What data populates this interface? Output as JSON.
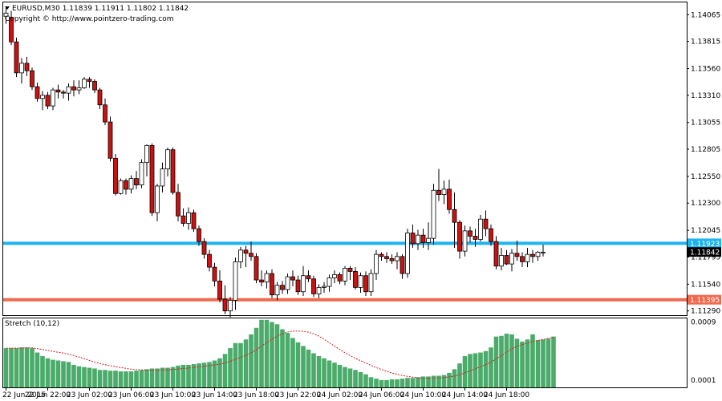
{
  "header": {
    "symbol_line": "EURUSD,M30  1.11839 1.11911 1.11802 1.11842",
    "copyright": "Copyright © http://www.pointzero-trading.com"
  },
  "indicator": {
    "title": "Stretch (10,12)"
  },
  "colors": {
    "bull_body": "#ffffff",
    "bear_body": "#cc1111",
    "wick": "#000000",
    "resistance_line": "#1eb4ee",
    "support_line": "#ef6a4e",
    "histogram": "#4bab6a",
    "signal": "#d62020",
    "current_tag": "#000000"
  },
  "chart_data": [
    {
      "type": "candlestick",
      "symbol": "EURUSD",
      "timeframe": "M30",
      "ohlc": {
        "open": "1.11839",
        "high": "1.11911",
        "low": "1.11802",
        "close": "1.11842"
      },
      "ylim": [
        1.1125,
        1.1418
      ],
      "y_ticks": [
        "1.14065",
        "1.13815",
        "1.13560",
        "1.13310",
        "1.13055",
        "1.12805",
        "1.12550",
        "1.12300",
        "1.12045",
        "1.11795",
        "1.11540",
        "1.11290"
      ],
      "x_ticks": [
        "22 Jun 2015",
        "22 Jun 22:00",
        "23 Jun 02:00",
        "23 Jun 06:00",
        "23 Jun 10:00",
        "23 Jun 14:00",
        "23 Jun 18:00",
        "23 Jun 22:00",
        "24 Jun 02:00",
        "24 Jun 06:00",
        "24 Jun 10:00",
        "24 Jun 14:00",
        "24 Jun 18:00"
      ],
      "levels": [
        {
          "value": 1.11923,
          "label": "1.11923",
          "color": "#1eb4ee"
        },
        {
          "value": 1.11395,
          "label": "1.11395",
          "color": "#ef6a4e"
        }
      ],
      "current_price": "1.11842",
      "candles": [
        [
          1.1405,
          1.1413,
          1.1398,
          1.1408
        ],
        [
          1.1404,
          1.141,
          1.1378,
          1.1381
        ],
        [
          1.1381,
          1.1385,
          1.1348,
          1.1352
        ],
        [
          1.1352,
          1.1366,
          1.1342,
          1.1361
        ],
        [
          1.1361,
          1.1367,
          1.1349,
          1.1354
        ],
        [
          1.1354,
          1.1357,
          1.1336,
          1.1339
        ],
        [
          1.1339,
          1.1343,
          1.1325,
          1.1328
        ],
        [
          1.1328,
          1.1335,
          1.1317,
          1.1331
        ],
        [
          1.1331,
          1.1334,
          1.1318,
          1.1321
        ],
        [
          1.1321,
          1.1338,
          1.1317,
          1.1336
        ],
        [
          1.1336,
          1.1341,
          1.1328,
          1.1334
        ],
        [
          1.1334,
          1.1336,
          1.1328,
          1.1333
        ],
        [
          1.1333,
          1.1342,
          1.1326,
          1.1339
        ],
        [
          1.1339,
          1.1345,
          1.133,
          1.1336
        ],
        [
          1.1336,
          1.1345,
          1.1332,
          1.1338
        ],
        [
          1.1338,
          1.1348,
          1.1337,
          1.1346
        ],
        [
          1.1346,
          1.1348,
          1.1338,
          1.1344
        ],
        [
          1.1344,
          1.1346,
          1.1333,
          1.1336
        ],
        [
          1.1336,
          1.1338,
          1.1318,
          1.1322
        ],
        [
          1.1322,
          1.1328,
          1.1303,
          1.1306
        ],
        [
          1.1306,
          1.1311,
          1.1269,
          1.1272
        ],
        [
          1.1272,
          1.1276,
          1.1237,
          1.1239
        ],
        [
          1.1239,
          1.1253,
          1.1238,
          1.1251
        ],
        [
          1.1251,
          1.1253,
          1.1238,
          1.1243
        ],
        [
          1.1243,
          1.1256,
          1.1239,
          1.1253
        ],
        [
          1.1253,
          1.126,
          1.1243,
          1.1247
        ],
        [
          1.1247,
          1.1271,
          1.1244,
          1.1268
        ],
        [
          1.1268,
          1.1285,
          1.1255,
          1.1284
        ],
        [
          1.1284,
          1.1286,
          1.1218,
          1.1221
        ],
        [
          1.1221,
          1.1248,
          1.1213,
          1.1246
        ],
        [
          1.1246,
          1.1268,
          1.124,
          1.1262
        ],
        [
          1.1262,
          1.1282,
          1.1255,
          1.128
        ],
        [
          1.128,
          1.1282,
          1.1238,
          1.124
        ],
        [
          1.124,
          1.1248,
          1.1213,
          1.1218
        ],
        [
          1.1218,
          1.1225,
          1.1208,
          1.1211
        ],
        [
          1.1211,
          1.1226,
          1.1205,
          1.1221
        ],
        [
          1.1221,
          1.1224,
          1.1203,
          1.1206
        ],
        [
          1.1206,
          1.1209,
          1.119,
          1.1194
        ],
        [
          1.1194,
          1.1197,
          1.1178,
          1.1182
        ],
        [
          1.1182,
          1.1186,
          1.1166,
          1.117
        ],
        [
          1.117,
          1.1174,
          1.1152,
          1.1157
        ],
        [
          1.1157,
          1.1167,
          1.1137,
          1.114
        ],
        [
          1.114,
          1.1153,
          1.1126,
          1.1129
        ],
        [
          1.1129,
          1.1142,
          1.1123,
          1.1139
        ],
        [
          1.1139,
          1.1179,
          1.113,
          1.1175
        ],
        [
          1.1175,
          1.1189,
          1.1169,
          1.1186
        ],
        [
          1.1186,
          1.119,
          1.117,
          1.1183
        ],
        [
          1.1183,
          1.1194,
          1.1176,
          1.118
        ],
        [
          1.118,
          1.1183,
          1.1155,
          1.1158
        ],
        [
          1.1158,
          1.1167,
          1.1152,
          1.1156
        ],
        [
          1.1156,
          1.1167,
          1.115,
          1.1164
        ],
        [
          1.1164,
          1.1168,
          1.1141,
          1.1144
        ],
        [
          1.1144,
          1.1156,
          1.1139,
          1.1153
        ],
        [
          1.1153,
          1.1157,
          1.1145,
          1.1149
        ],
        [
          1.1149,
          1.1164,
          1.1145,
          1.1161
        ],
        [
          1.1161,
          1.1167,
          1.1152,
          1.1158
        ],
        [
          1.1158,
          1.1162,
          1.1144,
          1.1147
        ],
        [
          1.1147,
          1.1171,
          1.1143,
          1.1162
        ],
        [
          1.1162,
          1.1167,
          1.1156,
          1.1159
        ],
        [
          1.1159,
          1.1162,
          1.1142,
          1.1145
        ],
        [
          1.1145,
          1.1154,
          1.1141,
          1.1151
        ],
        [
          1.1151,
          1.1156,
          1.1146,
          1.1152
        ],
        [
          1.1152,
          1.1163,
          1.1147,
          1.116
        ],
        [
          1.116,
          1.1167,
          1.1155,
          1.1163
        ],
        [
          1.1163,
          1.1165,
          1.1154,
          1.1157
        ],
        [
          1.1157,
          1.1171,
          1.1153,
          1.1169
        ],
        [
          1.1169,
          1.1171,
          1.1158,
          1.1166
        ],
        [
          1.1166,
          1.117,
          1.1149,
          1.1151
        ],
        [
          1.1151,
          1.1165,
          1.1146,
          1.1162
        ],
        [
          1.1162,
          1.1166,
          1.1143,
          1.1147
        ],
        [
          1.1147,
          1.1168,
          1.1143,
          1.1164
        ],
        [
          1.1164,
          1.1186,
          1.1158,
          1.1182
        ],
        [
          1.1182,
          1.1184,
          1.1176,
          1.118
        ],
        [
          1.118,
          1.1184,
          1.1174,
          1.1178
        ],
        [
          1.1178,
          1.1182,
          1.1173,
          1.1176
        ],
        [
          1.1176,
          1.1184,
          1.1168,
          1.118
        ],
        [
          1.118,
          1.1182,
          1.1159,
          1.1164
        ],
        [
          1.1164,
          1.1206,
          1.116,
          1.1202
        ],
        [
          1.1202,
          1.121,
          1.1188,
          1.1192
        ],
        [
          1.1192,
          1.1205,
          1.1186,
          1.12
        ],
        [
          1.12,
          1.1206,
          1.1188,
          1.1193
        ],
        [
          1.1193,
          1.1212,
          1.1186,
          1.1197
        ],
        [
          1.1197,
          1.1248,
          1.1191,
          1.1242
        ],
        [
          1.1242,
          1.1262,
          1.1232,
          1.1238
        ],
        [
          1.1238,
          1.1251,
          1.1229,
          1.1243
        ],
        [
          1.1243,
          1.1252,
          1.122,
          1.1224
        ],
        [
          1.1224,
          1.124,
          1.1188,
          1.1212
        ],
        [
          1.1212,
          1.1214,
          1.1178,
          1.1185
        ],
        [
          1.1185,
          1.1209,
          1.118,
          1.1204
        ],
        [
          1.1204,
          1.1208,
          1.1193,
          1.1199
        ],
        [
          1.1199,
          1.1206,
          1.1189,
          1.1196
        ],
        [
          1.1196,
          1.1219,
          1.1194,
          1.1215
        ],
        [
          1.1215,
          1.1223,
          1.1199,
          1.1206
        ],
        [
          1.1206,
          1.121,
          1.119,
          1.1194
        ],
        [
          1.1194,
          1.1199,
          1.1168,
          1.1171
        ],
        [
          1.1171,
          1.1188,
          1.1167,
          1.1181
        ],
        [
          1.1181,
          1.1186,
          1.1172,
          1.1173
        ],
        [
          1.1173,
          1.1187,
          1.1166,
          1.1183
        ],
        [
          1.1183,
          1.1195,
          1.1176,
          1.118
        ],
        [
          1.118,
          1.1184,
          1.117,
          1.1175
        ],
        [
          1.1175,
          1.1188,
          1.117,
          1.1182
        ],
        [
          1.1182,
          1.1186,
          1.1174,
          1.118
        ],
        [
          1.118,
          1.1185,
          1.1176,
          1.1184
        ],
        [
          1.1184,
          1.1191,
          1.118,
          1.1184
        ]
      ]
    },
    {
      "type": "bar",
      "title": "Stretch (10,12)",
      "ylim": [
        0,
        0.00095
      ],
      "y_ticks": [
        "0.0009",
        "0.0001"
      ],
      "values": [
        0.00054,
        0.00054,
        0.00054,
        0.00055,
        0.00055,
        0.00054,
        0.00048,
        0.00043,
        0.0004,
        0.00038,
        0.00037,
        0.00036,
        0.00035,
        0.00031,
        0.00029,
        0.00028,
        0.00027,
        0.00026,
        0.00024,
        0.00024,
        0.00023,
        0.00023,
        0.00022,
        0.00022,
        0.00022,
        0.00023,
        0.00024,
        0.00025,
        0.00026,
        0.00026,
        0.00027,
        0.00027,
        0.00028,
        0.0003,
        0.00031,
        0.00031,
        0.00032,
        0.00033,
        0.00034,
        0.00035,
        0.00037,
        0.0004,
        0.00046,
        0.00054,
        0.00061,
        0.00061,
        0.00066,
        0.00073,
        0.00082,
        0.00093,
        0.00093,
        0.0009,
        0.00087,
        0.0008,
        0.00075,
        0.00068,
        0.00062,
        0.00057,
        0.00052,
        0.00047,
        0.00043,
        0.0004,
        0.00037,
        0.00034,
        0.00031,
        0.00028,
        0.00026,
        0.00024,
        0.00021,
        0.00018,
        0.00014,
        0.00012,
        0.0001,
        0.0001,
        0.00011,
        0.00011,
        0.00012,
        0.00013,
        0.00013,
        0.00014,
        0.00015,
        0.00015,
        0.00016,
        0.00016,
        0.00017,
        0.0002,
        0.00025,
        0.00033,
        0.00043,
        0.00046,
        0.00047,
        0.00048,
        0.0005,
        0.00055,
        0.0007,
        0.00071,
        0.00074,
        0.00073,
        0.00067,
        0.00063,
        0.00066,
        0.00073,
        0.00065,
        0.00066,
        0.00067,
        0.0007
      ]
    }
  ]
}
